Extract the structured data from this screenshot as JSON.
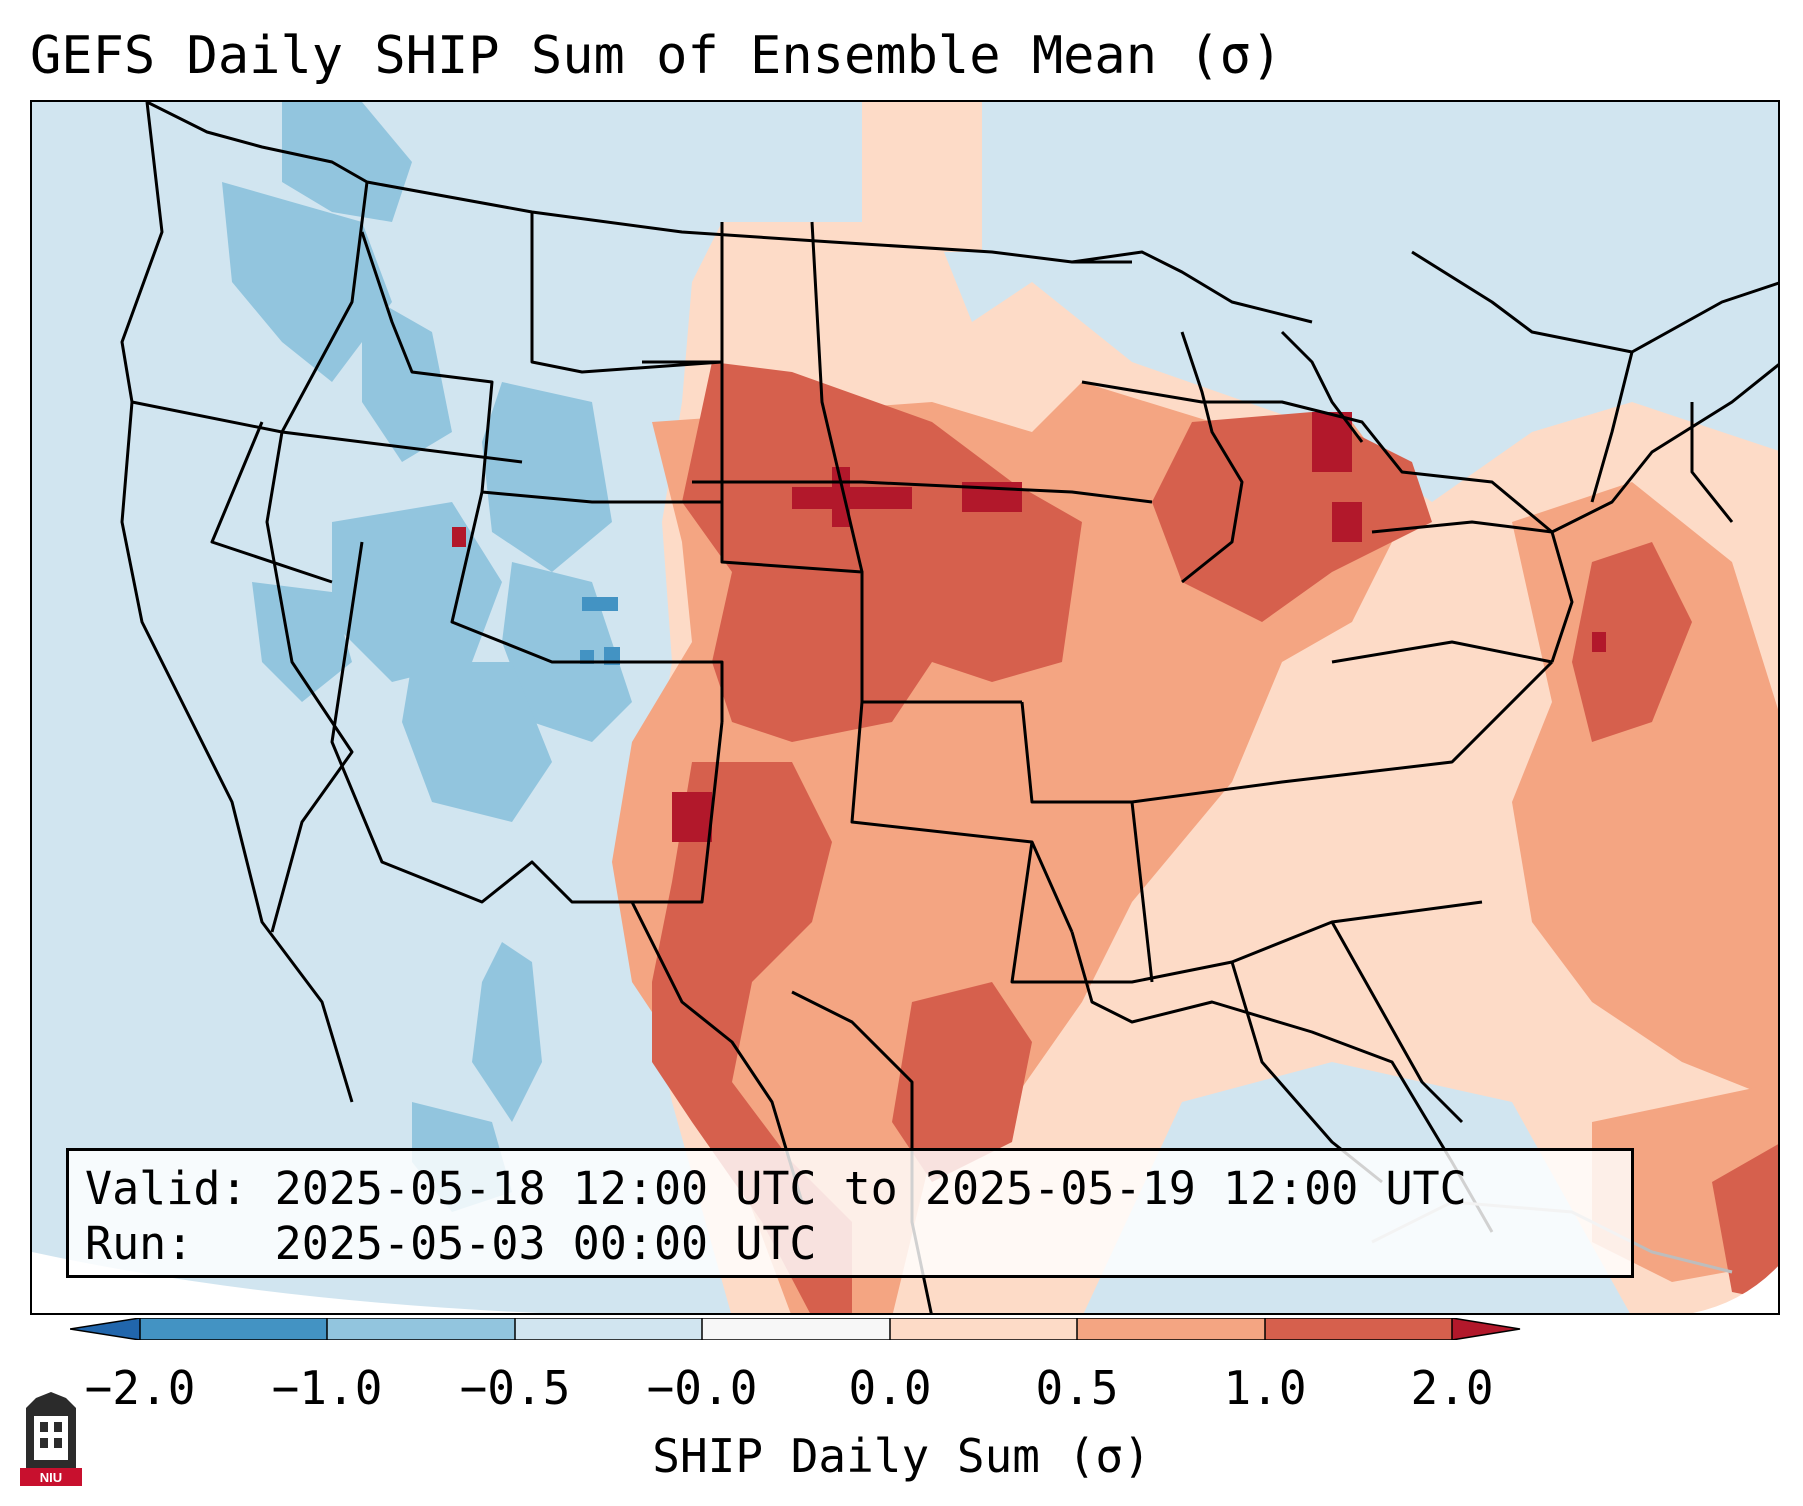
{
  "title": "GEFS Daily SHIP Sum of Ensemble Mean (σ)",
  "valid_label": "Valid:",
  "valid_value": "2025-05-18 12:00 UTC to 2025-05-19 12:00 UTC",
  "run_label": "Run:",
  "run_value": "2025-05-03 00:00 UTC",
  "colorbar": {
    "label": "SHIP Daily Sum (σ)",
    "ticks": [
      "−2.0",
      "−1.0",
      "−0.5",
      "−0.0",
      "0.0",
      "0.5",
      "1.0",
      "2.0"
    ],
    "bins": [
      {
        "range": "< -2.0",
        "color": "#2166ac"
      },
      {
        "range": "-2.0 to -1.0",
        "color": "#4393c3"
      },
      {
        "range": "-1.0 to -0.5",
        "color": "#92c5de"
      },
      {
        "range": "-0.5 to -0.0",
        "color": "#d1e5f0"
      },
      {
        "range": "-0.0 to 0.0",
        "color": "#f7f7f7"
      },
      {
        "range": "0.0 to 0.5",
        "color": "#fddbc7"
      },
      {
        "range": "0.5 to 1.0",
        "color": "#f4a582"
      },
      {
        "range": "1.0 to 2.0",
        "color": "#d6604d"
      },
      {
        "range": "> 2.0",
        "color": "#b2182b"
      }
    ]
  },
  "logo_text": "NIU",
  "colors": {
    "neg_strong": "#4393c3",
    "neg": "#92c5de",
    "neutral_neg": "#d1e5f0",
    "neutral_pos": "#fddbc7",
    "pos": "#f4a582",
    "pos_strong": "#d6604d",
    "extreme": "#b2182b"
  }
}
